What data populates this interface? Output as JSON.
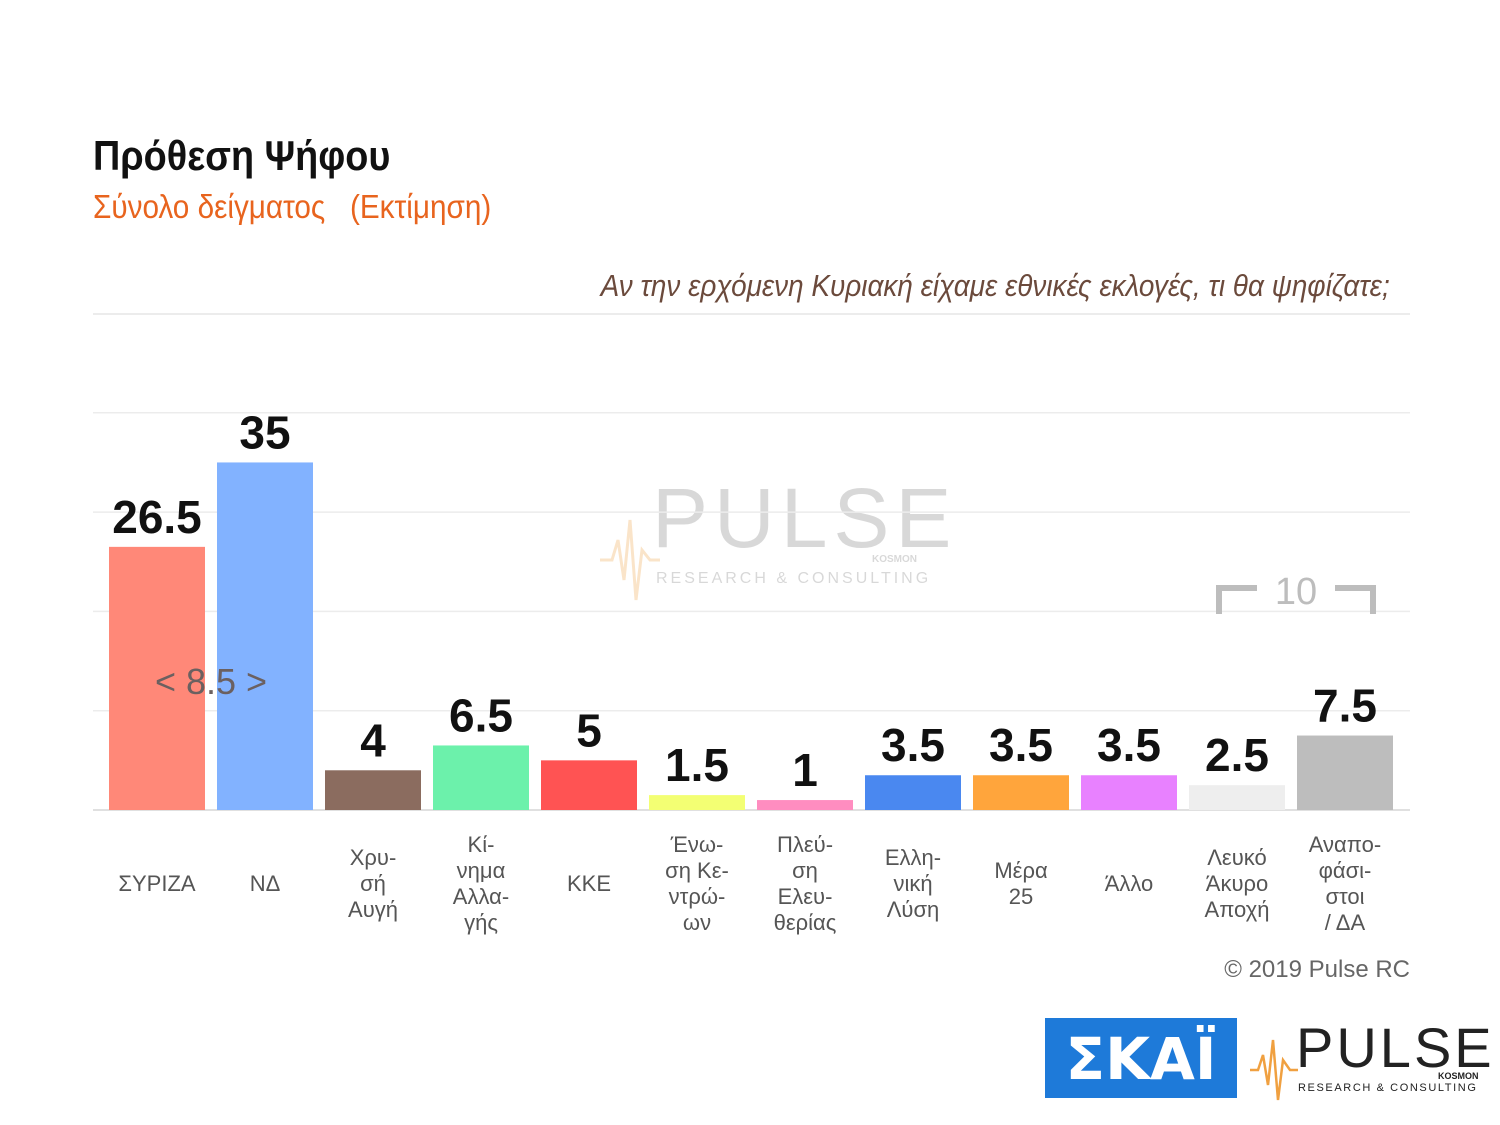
{
  "title": "Πρόθεση Ψήφου",
  "subtitle": "Σύνολο δείγματος   (Εκτίμηση)",
  "question": "Αν την ερχόμενη Κυριακή είχαμε εθνικές εκλογές, τι θα ψηφίζατε;",
  "copyright": "© 2019 Pulse RC",
  "watermark": {
    "brand": "PULSE",
    "tagline": "RESEARCH & CONSULTING",
    "sub_brand": "KOSMOΝ"
  },
  "logos": {
    "skai": "ΣΚΑΪ",
    "pulse_brand": "PULSE",
    "pulse_tagline": "RESEARCH & CONSULTING",
    "pulse_sub": "KOSMOΝ"
  },
  "chart_data": {
    "type": "bar",
    "title": "Πρόθεση Ψήφου",
    "subtitle": "Σύνολο δείγματος   (Εκτίμηση)",
    "ylim": [
      0,
      40
    ],
    "grid": true,
    "categories": [
      [
        "ΣΥΡΙΖΑ"
      ],
      [
        "ΝΔ"
      ],
      [
        "Χρυ-",
        "σή",
        "Αυγή"
      ],
      [
        "Κί-",
        "νημα",
        "Αλλα-",
        "γής"
      ],
      [
        "ΚΚΕ"
      ],
      [
        "Ένω-",
        "ση Κε-",
        "ντρώ-",
        "ων"
      ],
      [
        "Πλεύ-",
        "ση",
        "Ελευ-",
        "θερίας"
      ],
      [
        "Ελλη-",
        "νική",
        "Λύση"
      ],
      [
        "Μέρα",
        "25"
      ],
      [
        "Άλλο"
      ],
      [
        "Λευκό",
        "Άκυρο",
        "Αποχή"
      ],
      [
        "Αναπο-",
        "φάσι-",
        "στοι",
        "/ ΔΑ"
      ]
    ],
    "values": [
      26.5,
      35,
      4,
      6.5,
      5,
      1.5,
      1,
      3.5,
      3.5,
      3.5,
      2.5,
      7.5
    ],
    "value_labels": [
      "26.5",
      "35",
      "4",
      "6.5",
      "5",
      "1.5",
      "1",
      "3.5",
      "3.5",
      "3.5",
      "2.5",
      "7.5"
    ],
    "colors": [
      "#ff8878",
      "#82b2ff",
      "#8b6c5f",
      "#6cf1ab",
      "#ff5353",
      "#f3ff73",
      "#ff8dc0",
      "#4a88f0",
      "#ffa53c",
      "#e881ff",
      "#eeeeee",
      "#bdbdbd"
    ],
    "annotations": [
      {
        "text": "< 8.5 >",
        "between": [
          "ΣΥΡΙΖΑ",
          "ΝΔ"
        ]
      },
      {
        "text": "10",
        "between": [
          "Λευκό Άκυρο Αποχή",
          "Αναποφάσιστοι / ΔΑ"
        ]
      }
    ]
  }
}
